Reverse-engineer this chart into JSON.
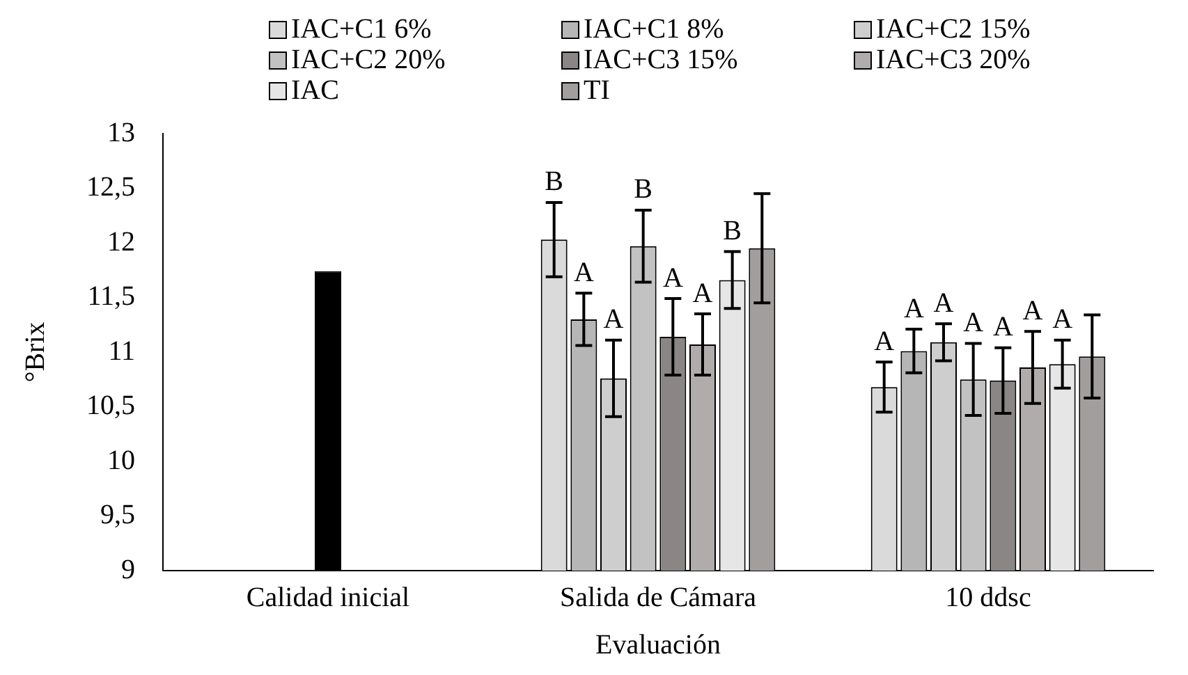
{
  "chart_data": {
    "type": "bar",
    "xlabel": "Evaluación",
    "ylabel": "°Brix",
    "categories": [
      "Calidad inicial",
      "Salida de Cámara",
      "10 ddsc"
    ],
    "series": [
      {
        "name": "IAC+C1 6%",
        "color": "#dadada",
        "values": [
          null,
          12.03,
          10.68
        ],
        "errors": [
          null,
          0.34,
          0.23
        ],
        "value_labels": [
          null,
          "B",
          "A"
        ]
      },
      {
        "name": "IAC+C1 8%",
        "color": "#b6b6b6",
        "values": [
          null,
          11.3,
          11.01
        ],
        "errors": [
          null,
          0.24,
          0.2
        ],
        "value_labels": [
          null,
          "A",
          "A"
        ]
      },
      {
        "name": "IAC+C2 15%",
        "color": "#cecece",
        "values": [
          null,
          10.76,
          11.09
        ],
        "errors": [
          null,
          0.35,
          0.17
        ],
        "value_labels": [
          null,
          "A",
          "A"
        ]
      },
      {
        "name": "IAC+C2 20%",
        "color": "#c2c2c2",
        "values": [
          null,
          11.97,
          10.75
        ],
        "errors": [
          null,
          0.33,
          0.33
        ],
        "value_labels": [
          null,
          "B",
          "A"
        ]
      },
      {
        "name": "IAC+C3 15%",
        "color": "#8a8686",
        "values": [
          null,
          11.14,
          10.74
        ],
        "errors": [
          null,
          0.35,
          0.3
        ],
        "value_labels": [
          null,
          "A",
          "A"
        ]
      },
      {
        "name": "IAC+C3 20%",
        "color": "#b0acac",
        "values": [
          null,
          11.07,
          10.86
        ],
        "errors": [
          null,
          0.28,
          0.33
        ],
        "value_labels": [
          null,
          "A",
          "A"
        ]
      },
      {
        "name": "IAC",
        "color": "#e6e6e6",
        "values": [
          null,
          11.66,
          10.89
        ],
        "errors": [
          null,
          0.26,
          0.22
        ],
        "value_labels": [
          null,
          "B",
          "A"
        ]
      },
      {
        "name": "TI",
        "color": "#a29e9e",
        "values": [
          null,
          11.95,
          10.96
        ],
        "errors": [
          null,
          0.5,
          0.38
        ]
      },
      {
        "color": "#000000",
        "values": [
          11.74,
          null,
          null
        ]
      }
    ],
    "ylim": [
      9,
      13
    ],
    "yticks": [
      9,
      {
        "value": 9.5,
        "label": "9,5"
      },
      10,
      {
        "value": 10.5,
        "label": "10,5"
      },
      11,
      {
        "value": 11.5,
        "label": "11,5"
      },
      12,
      {
        "value": 12.5,
        "label": "12,5"
      },
      13
    ],
    "grid": false,
    "legend": "top"
  }
}
